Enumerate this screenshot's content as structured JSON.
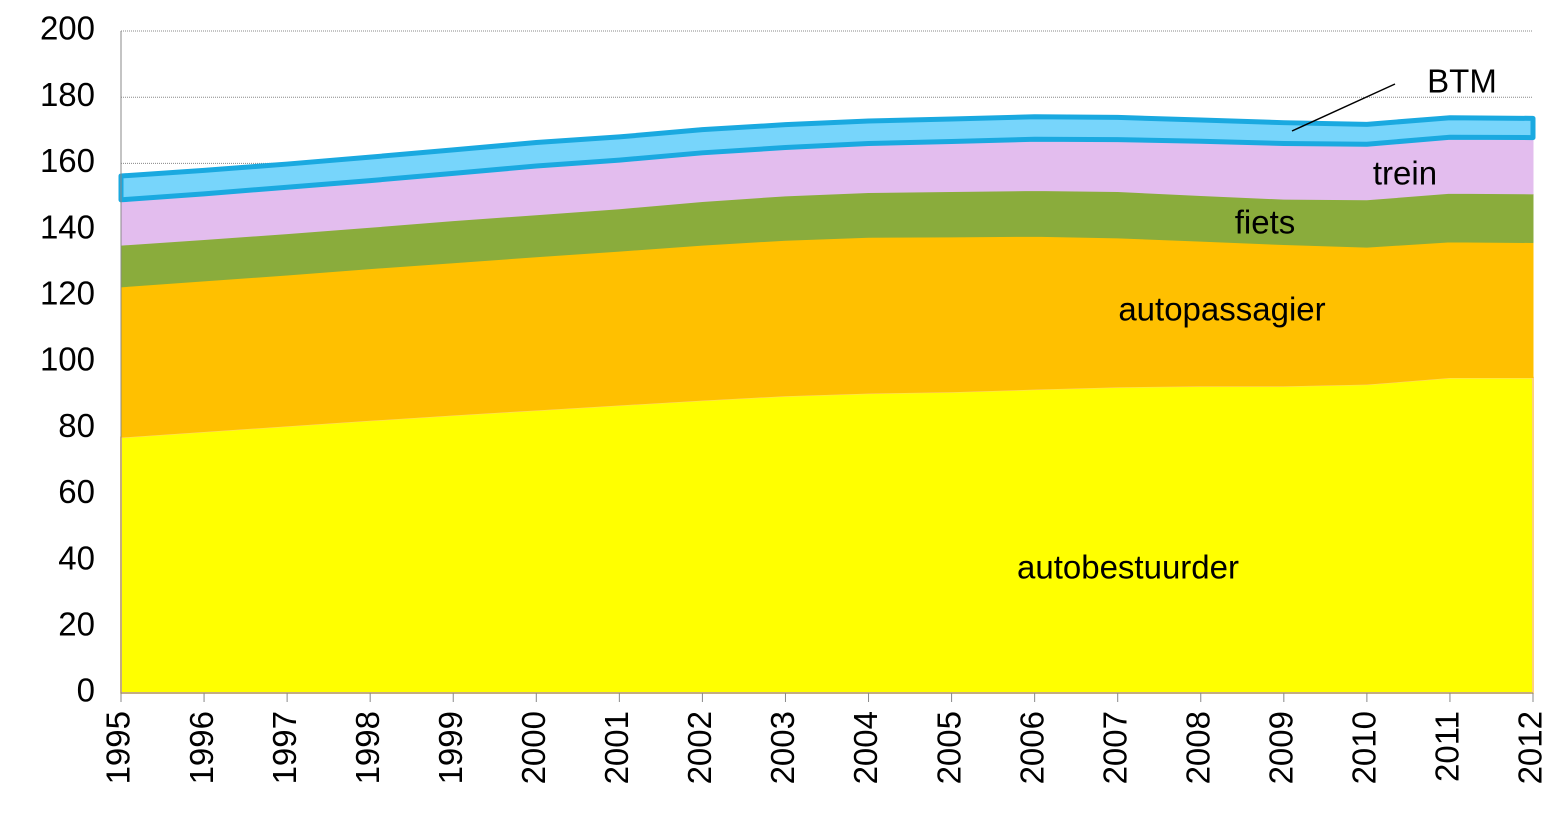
{
  "chart_data": {
    "type": "stacked_area",
    "categories": [
      "1995",
      "1996",
      "1997",
      "1998",
      "1999",
      "2000",
      "2001",
      "2002",
      "2003",
      "2004",
      "2005",
      "2006",
      "2007",
      "2008",
      "2009",
      "2010",
      "2011",
      "2012"
    ],
    "series": [
      {
        "name": "autobestuurder",
        "color": "#ffff00",
        "values": [
          77.3,
          79,
          80.7,
          82.4,
          84,
          85.5,
          87,
          88.5,
          89.8,
          90.6,
          91,
          91.8,
          92.5,
          92.8,
          92.8,
          93.3,
          95.3,
          95.3
        ]
      },
      {
        "name": "autopassagier",
        "color": "#ffc000",
        "values": [
          45.4,
          45.5,
          45.6,
          45.8,
          46,
          46.3,
          46.5,
          46.8,
          47,
          47.1,
          46.8,
          46.2,
          45,
          43.7,
          42.7,
          41.4,
          41,
          40.8
        ]
      },
      {
        "name": "fiets",
        "color": "#8aac3c",
        "values": [
          12.6,
          12.5,
          12.5,
          12.5,
          12.7,
          12.7,
          12.8,
          13.2,
          13.4,
          13.5,
          13.7,
          13.8,
          14,
          13.8,
          13.7,
          14.3,
          14.7,
          14.7
        ]
      },
      {
        "name": "trein",
        "color": "#e3bdee",
        "values": [
          13.7,
          13.8,
          14,
          14.1,
          14.3,
          14.7,
          14.7,
          14.7,
          14.6,
          14.8,
          15.1,
          15.5,
          15.7,
          16.4,
          16.8,
          16.8,
          16.9,
          17
        ]
      },
      {
        "name": "BTM",
        "color": "#77d5fb",
        "values": [
          7.2,
          7.1,
          7,
          7.1,
          7.1,
          7.1,
          7,
          7,
          6.9,
          6.8,
          6.8,
          6.8,
          6.7,
          6.4,
          6.3,
          6,
          5.9,
          5.8
        ]
      }
    ],
    "ylim": [
      0,
      200
    ],
    "yticks": [
      0,
      20,
      40,
      60,
      80,
      100,
      120,
      140,
      160,
      180,
      200
    ],
    "grid": true
  }
}
